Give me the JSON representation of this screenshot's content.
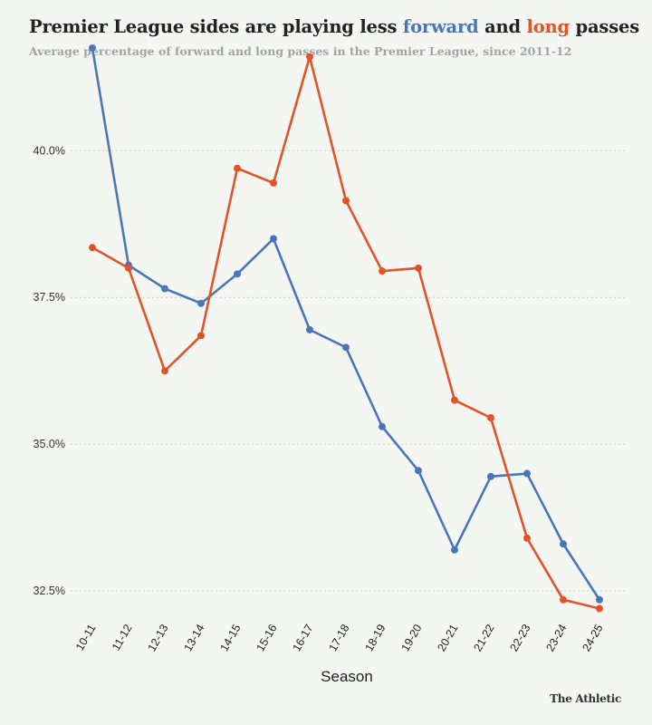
{
  "header": {
    "title_prefix": "Premier League sides are playing less ",
    "title_forward": "forward",
    "title_and": " and ",
    "title_long": "long",
    "title_suffix": " passes",
    "subtitle": "Average percentage of forward and long passes in the Premier League, since 2011-12"
  },
  "brand": {
    "logo": "The Athletic"
  },
  "colors": {
    "forward": "#4a76b9",
    "long": "#e2532b",
    "background": "#f4f7f1"
  },
  "chart_data": {
    "type": "line",
    "title": "Premier League sides are playing less forward and long passes",
    "subtitle": "Average percentage of forward and long passes in the Premier League, since 2011-12",
    "xlabel": "Season",
    "ylabel": "",
    "categories": [
      "10-11",
      "11-12",
      "12-13",
      "13-14",
      "14-15",
      "15-16",
      "16-17",
      "17-18",
      "18-19",
      "19-20",
      "20-21",
      "21-22",
      "22-23",
      "23-24",
      "24-25"
    ],
    "ylim": [
      32.1,
      41.95
    ],
    "yticks": [
      32.5,
      35.0,
      37.5,
      40.0
    ],
    "ytick_labels": [
      "32.5%",
      "35.0%",
      "37.5%",
      "40.0%"
    ],
    "grid": true,
    "series": [
      {
        "name": "forward",
        "color": "#4a76b9",
        "values": [
          41.75,
          38.05,
          37.65,
          37.4,
          37.9,
          38.5,
          36.95,
          36.65,
          35.3,
          34.55,
          33.2,
          34.45,
          34.5,
          33.3,
          32.35
        ]
      },
      {
        "name": "long",
        "color": "#e2532b",
        "values": [
          38.35,
          38.0,
          36.25,
          36.85,
          39.7,
          39.45,
          41.6,
          39.15,
          37.95,
          38.0,
          35.75,
          35.45,
          33.4,
          32.35,
          32.2
        ]
      }
    ]
  }
}
